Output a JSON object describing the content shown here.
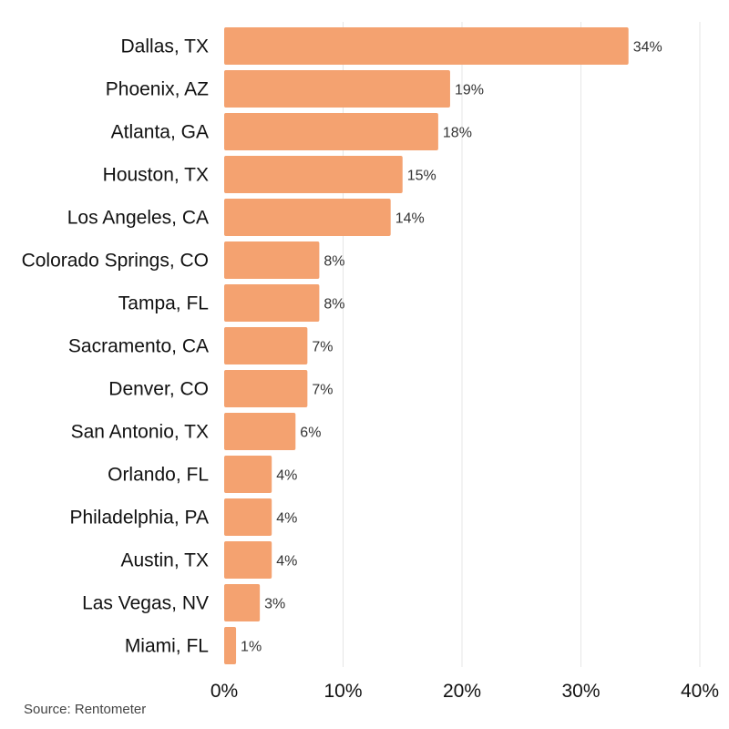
{
  "source_text": "Source: Rentometer",
  "chart_data": {
    "type": "bar",
    "orientation": "horizontal",
    "categories": [
      "Dallas, TX",
      "Phoenix, AZ",
      "Atlanta, GA",
      "Houston, TX",
      "Los Angeles, CA",
      "Colorado Springs, CO",
      "Tampa, FL",
      "Sacramento, CA",
      "Denver, CO",
      "San Antonio, TX",
      "Orlando, FL",
      "Philadelphia, PA",
      "Austin, TX",
      "Las Vegas, NV",
      "Miami, FL"
    ],
    "values": [
      34,
      19,
      18,
      15,
      14,
      8,
      8,
      7,
      7,
      6,
      4,
      4,
      4,
      3,
      1
    ],
    "data_labels": [
      "34%",
      "19%",
      "18%",
      "15%",
      "14%",
      "8%",
      "8%",
      "7%",
      "7%",
      "6%",
      "4%",
      "4%",
      "4%",
      "3%",
      "1%"
    ],
    "x_ticks": [
      0,
      10,
      20,
      30,
      40
    ],
    "x_tick_labels": [
      "0%",
      "10%",
      "20%",
      "30%",
      "40%"
    ],
    "xlim": [
      0,
      40
    ],
    "grid": "vertical",
    "bar_color": "#F4A270",
    "grid_color": "#E6E6E6"
  }
}
